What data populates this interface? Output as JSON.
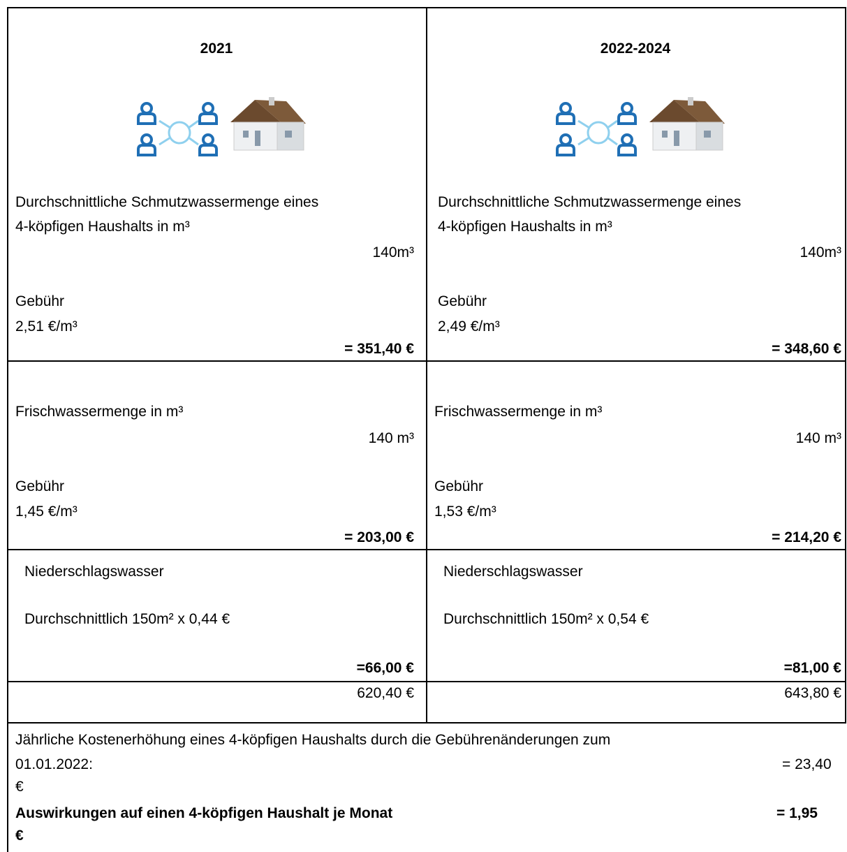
{
  "columns": [
    {
      "year": "2021",
      "schmutz": {
        "desc_line1": "Durchschnittliche Schmutzwassermenge eines",
        "desc_line2": "4-köpfigen Haushalts in m³",
        "quantity": "140m³",
        "fee_label": "Gebühr",
        "fee": "2,51 €/m³",
        "total": "= 351,40 €"
      },
      "frisch": {
        "title": "Frischwassermenge in m³",
        "quantity": "140 m³",
        "fee_label": "Gebühr",
        "fee": "1,45 €/m³",
        "total": "= 203,00 €"
      },
      "nieder": {
        "title": "Niederschlagswasser",
        "calc": "Durchschnittlich 150m² x 0,44 €",
        "total": "=66,00 €"
      },
      "sum": "620,40 €"
    },
    {
      "year": "2022-2024",
      "schmutz": {
        "desc_line1": "Durchschnittliche Schmutzwassermenge eines",
        "desc_line2": "4-köpfigen Haushalts in m³",
        "quantity": "140m³",
        "fee_label": "Gebühr",
        "fee": "2,49 €/m³",
        "total": "= 348,60 €"
      },
      "frisch": {
        "title": "Frischwassermenge in m³",
        "quantity": "140 m³",
        "fee_label": "Gebühr",
        "fee": "1,53 €/m³",
        "total": "= 214,20 €"
      },
      "nieder": {
        "title": "Niederschlagswasser",
        "calc": "Durchschnittlich 150m² x 0,54 €",
        "total": "=81,00 €"
      },
      "sum": "643,80 €"
    }
  ],
  "footer": {
    "line1": "Jährliche Kostenerhöhung eines 4-köpfigen Haushalts durch die Gebührenänderungen zum",
    "line2": "01.01.2022:",
    "increase_value": "= 23,40",
    "increase_unit": "€",
    "monthly_label": "Auswirkungen auf einen 4-köpfigen Haushalt je Monat",
    "monthly_value": "=   1,95",
    "monthly_unit": "€"
  }
}
